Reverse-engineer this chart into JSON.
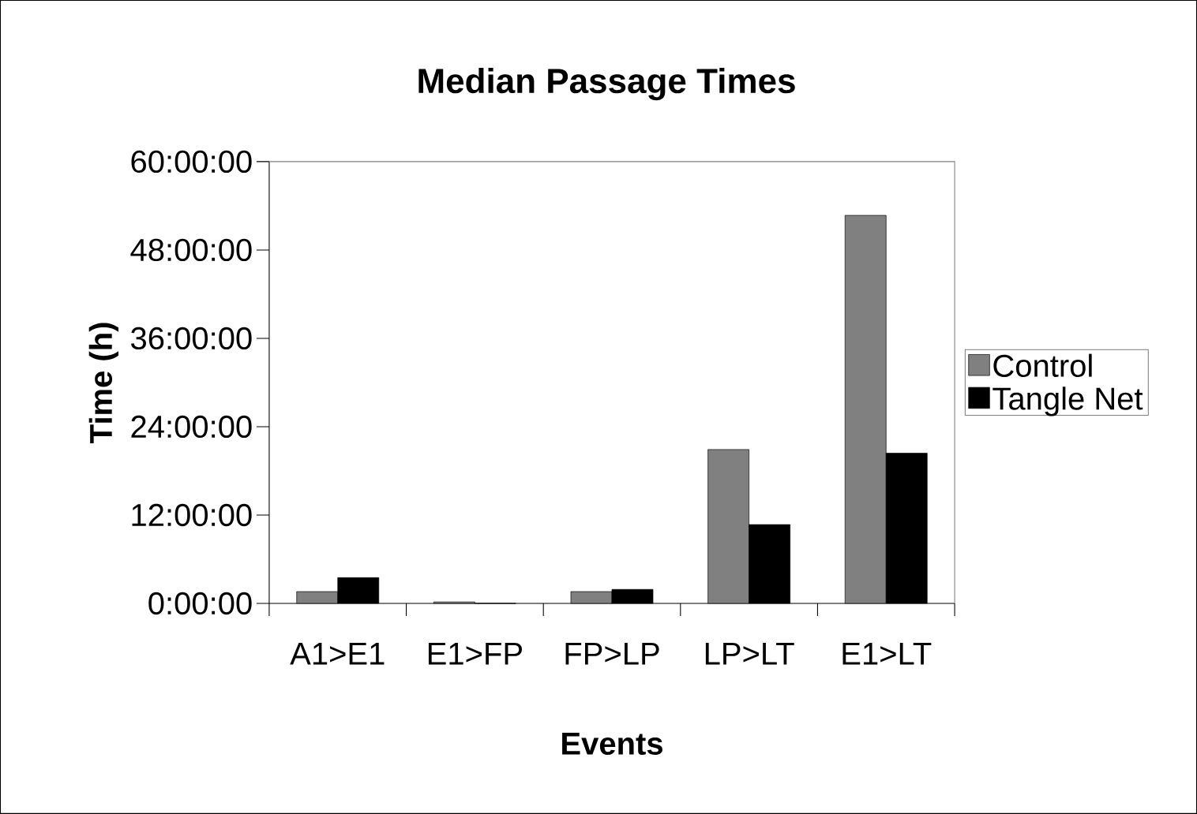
{
  "chart_data": {
    "type": "bar",
    "title": "Median Passage Times",
    "xlabel": "Events",
    "ylabel": "Time (h)",
    "categories": [
      "A1>E1",
      "E1>FP",
      "FP>LP",
      "LP>LT",
      "E1>LT"
    ],
    "series": [
      {
        "name": "Control",
        "color": "#808080",
        "values": [
          1.6,
          0.2,
          1.6,
          20.9,
          52.7
        ]
      },
      {
        "name": "Tangle Net",
        "color": "#000000",
        "values": [
          3.5,
          0,
          1.9,
          10.7,
          20.4
        ]
      }
    ],
    "ylim": [
      0,
      60
    ],
    "yticks": [
      {
        "value": 0,
        "label": "0:00:00"
      },
      {
        "value": 12,
        "label": "12:00:00"
      },
      {
        "value": 24,
        "label": "24:00:00"
      },
      {
        "value": 36,
        "label": "36:00:00"
      },
      {
        "value": 48,
        "label": "48:00:00"
      },
      {
        "value": 60,
        "label": "60:00:00"
      }
    ],
    "legend": "right",
    "grid": false
  }
}
